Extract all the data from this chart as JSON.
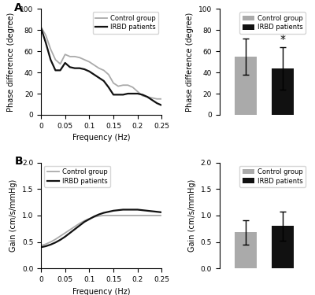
{
  "panel_A_label": "A",
  "panel_B_label": "B",
  "freq": [
    0,
    0.01,
    0.02,
    0.03,
    0.04,
    0.05,
    0.06,
    0.07,
    0.08,
    0.09,
    0.1,
    0.11,
    0.12,
    0.13,
    0.14,
    0.15,
    0.16,
    0.17,
    0.18,
    0.19,
    0.2,
    0.21,
    0.22,
    0.23,
    0.24,
    0.25
  ],
  "phase_control": [
    83,
    75,
    62,
    52,
    48,
    57,
    55,
    55,
    54,
    52,
    50,
    47,
    44,
    42,
    38,
    30,
    27,
    28,
    28,
    26,
    22,
    18,
    17,
    16,
    15,
    15
  ],
  "phase_irbd": [
    82,
    68,
    52,
    42,
    42,
    49,
    45,
    44,
    44,
    43,
    41,
    38,
    35,
    32,
    26,
    19,
    19,
    19,
    20,
    20,
    20,
    19,
    17,
    14,
    11,
    9
  ],
  "gain_control": [
    0.43,
    0.46,
    0.5,
    0.55,
    0.61,
    0.67,
    0.73,
    0.79,
    0.85,
    0.9,
    0.94,
    0.97,
    0.99,
    1.0,
    1.0,
    1.0,
    1.0,
    1.0,
    1.0,
    1.0,
    1.0,
    1.0,
    1.0,
    1.0,
    1.0,
    1.0
  ],
  "gain_irbd": [
    0.4,
    0.42,
    0.45,
    0.49,
    0.54,
    0.6,
    0.67,
    0.74,
    0.81,
    0.88,
    0.93,
    0.98,
    1.02,
    1.05,
    1.07,
    1.09,
    1.1,
    1.11,
    1.11,
    1.11,
    1.11,
    1.1,
    1.09,
    1.08,
    1.07,
    1.06
  ],
  "bar_phase_control_mean": 55,
  "bar_phase_control_err": 17,
  "bar_phase_irbd_mean": 44,
  "bar_phase_irbd_err": 20,
  "bar_gain_control_mean": 0.68,
  "bar_gain_control_err": 0.23,
  "bar_gain_irbd_mean": 0.8,
  "bar_gain_irbd_err": 0.28,
  "color_control": "#aaaaaa",
  "color_irbd": "#111111",
  "color_control_line": "#aaaaaa",
  "color_irbd_line": "#111111",
  "phase_ylim": [
    0,
    100
  ],
  "phase_yticks": [
    0,
    20,
    40,
    60,
    80,
    100
  ],
  "gain_ylim": [
    0,
    2
  ],
  "gain_yticks": [
    0.0,
    0.5,
    1.0,
    1.5,
    2.0
  ],
  "freq_xlim": [
    0,
    0.25
  ],
  "freq_xticks": [
    0,
    0.05,
    0.1,
    0.15,
    0.2,
    0.25
  ],
  "freq_xticklabels": [
    "0",
    "0.05",
    "0.1",
    "0.15",
    "0.2",
    "0.25"
  ],
  "xlabel_freq": "Frequency (Hz)",
  "ylabel_phase": "Phase difference (degree)",
  "ylabel_gain": "Gain (cm/s/mmHg)",
  "legend_control": "Control group",
  "legend_irbd": "IRBD patients",
  "star_annotation": "*",
  "background_color": "#ffffff"
}
